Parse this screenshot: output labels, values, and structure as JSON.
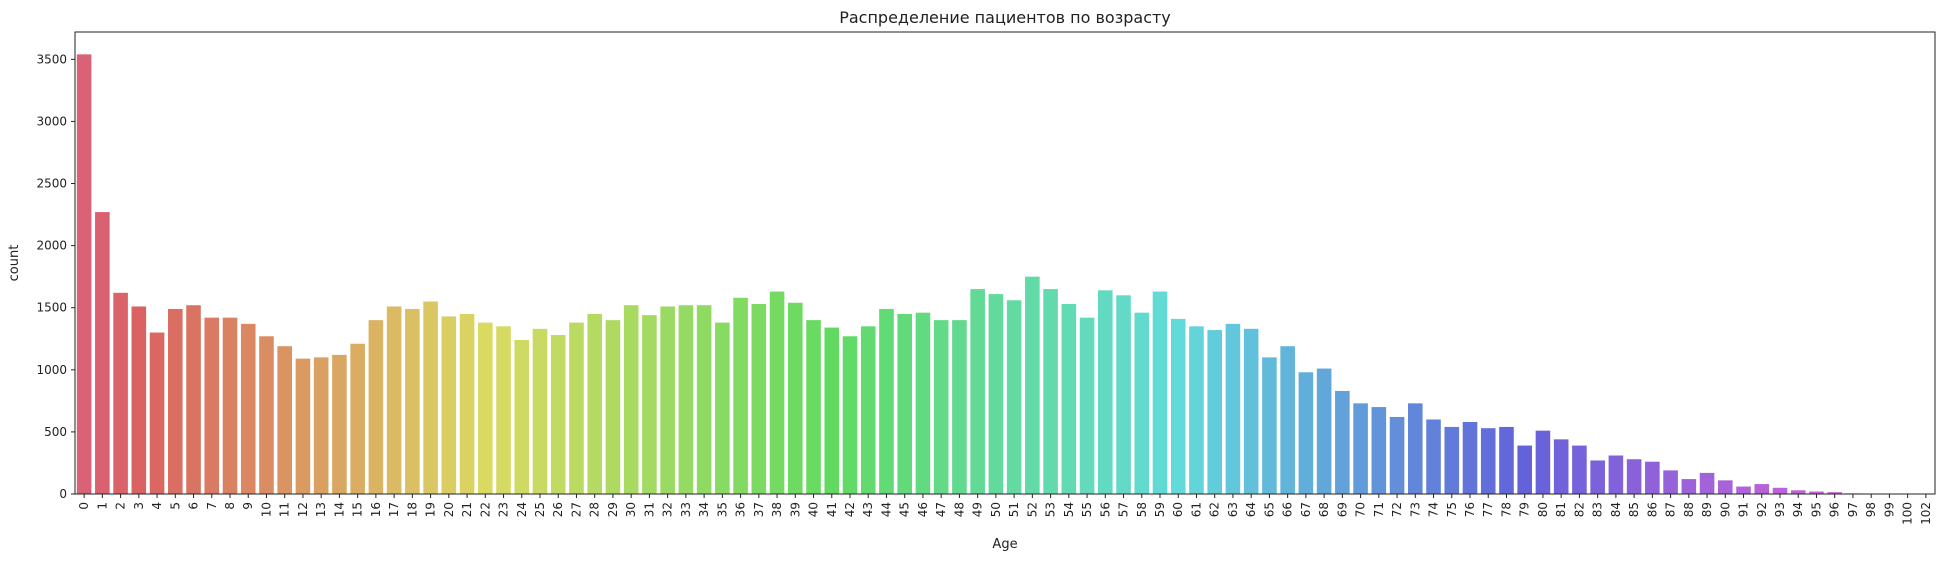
{
  "chart_data": {
    "type": "bar",
    "title": "Распределение пациентов по возрасту",
    "xlabel": "Age",
    "ylabel": "count",
    "ylim": [
      0,
      3720
    ],
    "yticks": [
      0,
      500,
      1000,
      1500,
      2000,
      2500,
      3000,
      3500
    ],
    "grid": false,
    "legend": "none",
    "categories": [
      "0",
      "1",
      "2",
      "3",
      "4",
      "5",
      "6",
      "7",
      "8",
      "9",
      "10",
      "11",
      "12",
      "13",
      "14",
      "15",
      "16",
      "17",
      "18",
      "19",
      "20",
      "21",
      "22",
      "23",
      "24",
      "25",
      "26",
      "27",
      "28",
      "29",
      "30",
      "31",
      "32",
      "33",
      "34",
      "35",
      "36",
      "37",
      "38",
      "39",
      "40",
      "41",
      "42",
      "43",
      "44",
      "45",
      "46",
      "47",
      "48",
      "49",
      "50",
      "51",
      "52",
      "53",
      "54",
      "55",
      "56",
      "57",
      "58",
      "59",
      "60",
      "61",
      "62",
      "63",
      "64",
      "65",
      "66",
      "67",
      "68",
      "69",
      "70",
      "71",
      "72",
      "73",
      "74",
      "75",
      "76",
      "77",
      "78",
      "79",
      "80",
      "81",
      "82",
      "83",
      "84",
      "85",
      "86",
      "87",
      "88",
      "89",
      "90",
      "91",
      "92",
      "93",
      "94",
      "95",
      "96",
      "97",
      "98",
      "99",
      "100",
      "102"
    ],
    "values": [
      3540,
      2270,
      1620,
      1510,
      1300,
      1490,
      1520,
      1420,
      1420,
      1370,
      1270,
      1190,
      1090,
      1100,
      1120,
      1210,
      1400,
      1510,
      1490,
      1550,
      1430,
      1450,
      1380,
      1350,
      1240,
      1330,
      1280,
      1380,
      1450,
      1400,
      1520,
      1440,
      1510,
      1520,
      1520,
      1380,
      1580,
      1530,
      1630,
      1540,
      1400,
      1340,
      1270,
      1350,
      1490,
      1450,
      1460,
      1400,
      1400,
      1650,
      1610,
      1560,
      1750,
      1650,
      1530,
      1420,
      1640,
      1600,
      1460,
      1630,
      1410,
      1350,
      1320,
      1370,
      1330,
      1100,
      1190,
      980,
      1010,
      830,
      730,
      700,
      620,
      730,
      600,
      540,
      580,
      530,
      540,
      390,
      510,
      440,
      390,
      270,
      310,
      280,
      260,
      190,
      120,
      170,
      110,
      60,
      80,
      50,
      30,
      20,
      15,
      5,
      3,
      2,
      1,
      1
    ]
  }
}
